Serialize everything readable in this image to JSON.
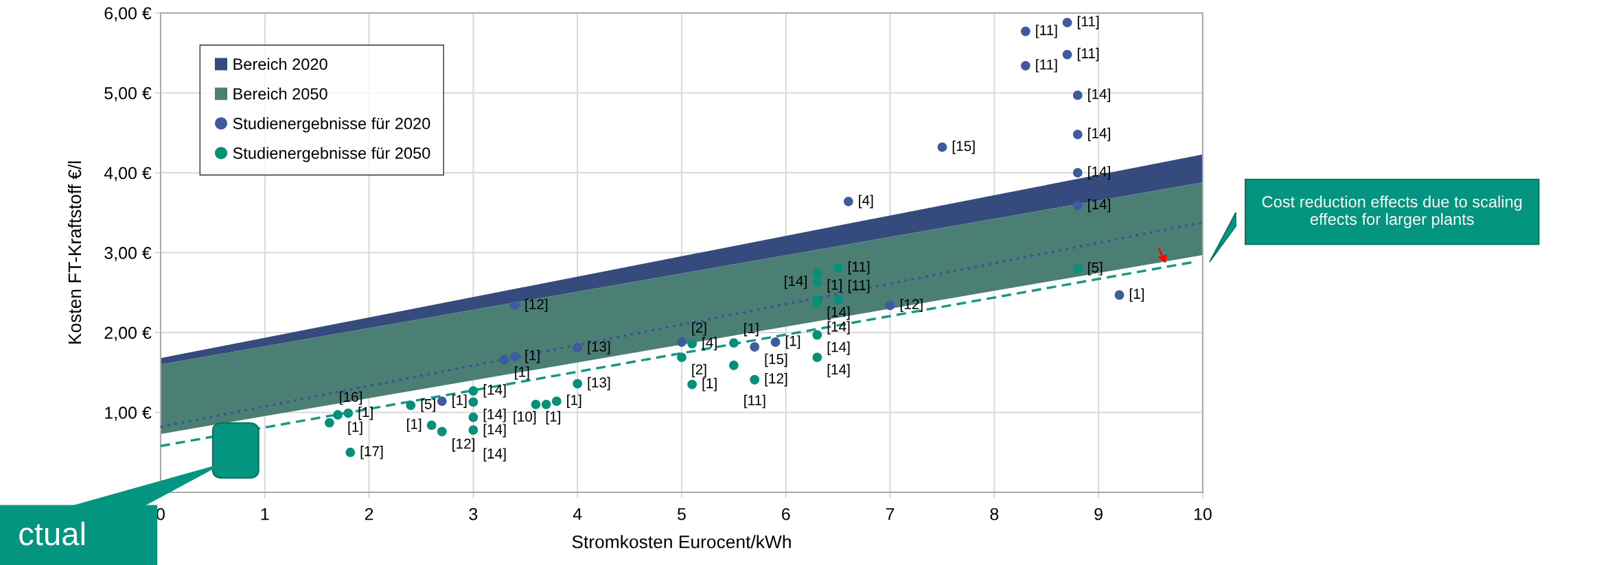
{
  "chart_data": {
    "type": "scatter",
    "xlabel": "Stromkosten Eurocent/kWh",
    "ylabel": "Kosten FT-Kraftstoff €/l",
    "xlim": [
      0,
      10
    ],
    "ylim": [
      0,
      6
    ],
    "xticks": [
      0,
      1,
      2,
      3,
      4,
      5,
      6,
      7,
      8,
      9,
      10
    ],
    "yticks": [
      {
        "value": 0,
        "label": null
      },
      {
        "value": 1,
        "label": "1,00 €"
      },
      {
        "value": 2,
        "label": "2,00 €"
      },
      {
        "value": 3,
        "label": "3,00 €"
      },
      {
        "value": 4,
        "label": "4,00 €"
      },
      {
        "value": 5,
        "label": "5,00 €"
      },
      {
        "value": 6,
        "label": "6,00 €"
      }
    ],
    "grid": true,
    "legend": "top left",
    "series": [
      {
        "type": "line",
        "name": "Bereich 2020",
        "color": "#354a7d",
        "x": [
          0,
          10
        ],
        "values": [
          null,
          null
        ],
        "lower": [
          1.6,
          3.88
        ],
        "upper": [
          1.68,
          4.23
        ]
      },
      {
        "type": "line",
        "name": "Bereich 2050",
        "color": "#4b7f74",
        "x": [
          0,
          10
        ],
        "values": [
          null,
          null
        ],
        "lower": [
          0.73,
          2.97
        ],
        "upper": [
          1.6,
          3.88
        ]
      },
      {
        "type": "line",
        "color": "#3c4f99",
        "line_style": "dotted",
        "x": [
          0,
          10
        ],
        "values": [
          0.82,
          3.38
        ]
      },
      {
        "type": "line",
        "color": "#139a86",
        "line_style": "dashed",
        "x": [
          0,
          9.9
        ],
        "values": [
          0.58,
          2.88
        ]
      },
      {
        "name": "Studienergebnisse für 2020",
        "color": "#3f5a9e",
        "marker": "circle",
        "x": [
          8.7,
          8.3,
          8.7,
          8.3,
          8.8,
          8.8,
          7.5,
          8.8,
          6.6,
          8.8,
          9.2,
          7.0,
          3.4,
          3.3,
          3.4,
          4.0,
          5.0,
          5.7,
          5.9,
          2.7
        ],
        "values": [
          5.88,
          5.77,
          5.48,
          5.34,
          4.97,
          4.48,
          4.32,
          4.0,
          3.64,
          3.59,
          2.47,
          2.34,
          2.34,
          1.66,
          1.7,
          1.81,
          1.88,
          1.82,
          1.88,
          1.14
        ]
      },
      {
        "name": "Studienergebnisse für 2050",
        "color": "#06907a",
        "marker": "circle",
        "x": [
          8.8,
          6.3,
          6.3,
          6.5,
          6.3,
          6.3,
          6.5,
          6.3,
          6.3,
          5.1,
          5.5,
          5.0,
          5.5,
          5.7,
          5.1,
          4.0,
          3.6,
          3.7,
          3.8,
          3.0,
          3.0,
          3.0,
          3.0,
          2.7,
          2.6,
          2.4,
          1.7,
          1.8,
          1.62,
          1.82
        ],
        "values": [
          2.8,
          2.75,
          2.63,
          2.81,
          2.41,
          2.37,
          2.41,
          1.97,
          1.69,
          1.86,
          1.87,
          1.69,
          1.59,
          1.41,
          1.35,
          1.36,
          1.1,
          1.1,
          1.14,
          1.27,
          1.13,
          0.94,
          0.78,
          0.76,
          0.84,
          1.09,
          0.97,
          0.99,
          0.87,
          0.5
        ]
      }
    ],
    "annotations": [
      "Cost reduction effects due to scaling effects for larger plants",
      "ctual",
      {
        "text": "[11]",
        "x": 8.7,
        "y": 5.88
      },
      {
        "text": "[11]",
        "x": 8.3,
        "y": 5.77
      },
      {
        "text": "[11]",
        "x": 8.7,
        "y": 5.48
      },
      {
        "text": "[11]",
        "x": 8.3,
        "y": 5.34
      },
      {
        "text": "[14]",
        "x": 8.8,
        "y": 4.97
      },
      {
        "text": "[14]",
        "x": 8.8,
        "y": 4.48
      },
      {
        "text": "[15]",
        "x": 7.5,
        "y": 4.32
      },
      {
        "text": "[14]",
        "x": 8.8,
        "y": 4.0
      },
      {
        "text": "[4]",
        "x": 6.6,
        "y": 3.64
      },
      {
        "text": "[14]",
        "x": 8.8,
        "y": 3.59
      },
      {
        "text": "[1]",
        "x": 9.2,
        "y": 2.47
      },
      {
        "text": "[12]",
        "x": 7.0,
        "y": 2.34
      },
      {
        "text": "[12]",
        "x": 3.4,
        "y": 2.34
      },
      {
        "text": "[1]",
        "x": 3.3,
        "y": 1.66
      },
      {
        "text": "[1]",
        "x": 3.4,
        "y": 1.7
      },
      {
        "text": "[13]",
        "x": 4.0,
        "y": 1.81
      },
      {
        "text": "[2]",
        "x": 5.0,
        "y": 1.88
      },
      {
        "text": "[15]",
        "x": 5.7,
        "y": 1.82
      },
      {
        "text": "[1]",
        "x": 5.9,
        "y": 1.88
      },
      {
        "text": "[1]",
        "x": 2.7,
        "y": 1.14
      },
      {
        "text": "[5]",
        "x": 8.8,
        "y": 2.8
      },
      {
        "text": "[1]",
        "x": 6.3,
        "y": 2.75
      },
      {
        "text": "[14]",
        "x": 6.3,
        "y": 2.63
      },
      {
        "text": "[11]",
        "x": 6.5,
        "y": 2.81
      },
      {
        "text": "[14]",
        "x": 6.3,
        "y": 2.41
      },
      {
        "text": "[14]",
        "x": 6.3,
        "y": 2.37
      },
      {
        "text": "[11]",
        "x": 6.5,
        "y": 2.41
      },
      {
        "text": "[14]",
        "x": 6.3,
        "y": 1.97
      },
      {
        "text": "[14]",
        "x": 6.3,
        "y": 1.69
      },
      {
        "text": "[4]",
        "x": 5.1,
        "y": 1.86
      },
      {
        "text": "[1]",
        "x": 5.5,
        "y": 1.87
      },
      {
        "text": "[2]",
        "x": 5.0,
        "y": 1.69
      },
      {
        "text": "[11]",
        "x": 5.5,
        "y": 1.59
      },
      {
        "text": "[12]",
        "x": 5.7,
        "y": 1.41
      },
      {
        "text": "[1]",
        "x": 5.1,
        "y": 1.35
      },
      {
        "text": "[13]",
        "x": 4.0,
        "y": 1.36
      },
      {
        "text": "[1]",
        "x": 3.6,
        "y": 1.1
      },
      {
        "text": "[10]",
        "x": 3.7,
        "y": 1.1
      },
      {
        "text": "[1]",
        "x": 3.8,
        "y": 1.14
      },
      {
        "text": "[14]",
        "x": 3.0,
        "y": 1.27
      },
      {
        "text": "[14]",
        "x": 3.0,
        "y": 1.13
      },
      {
        "text": "[14]",
        "x": 3.0,
        "y": 0.94
      },
      {
        "text": "[14]",
        "x": 3.0,
        "y": 0.78
      },
      {
        "text": "[12]",
        "x": 2.7,
        "y": 0.76
      },
      {
        "text": "[1]",
        "x": 2.6,
        "y": 0.84
      },
      {
        "text": "[5]",
        "x": 2.4,
        "y": 1.09
      },
      {
        "text": "[1]",
        "x": 1.7,
        "y": 0.97
      },
      {
        "text": "[1]",
        "x": 1.8,
        "y": 0.99
      },
      {
        "text": "[16]",
        "x": 1.62,
        "y": 0.87
      },
      {
        "text": "[17]",
        "x": 1.82,
        "y": 0.5
      }
    ]
  }
}
